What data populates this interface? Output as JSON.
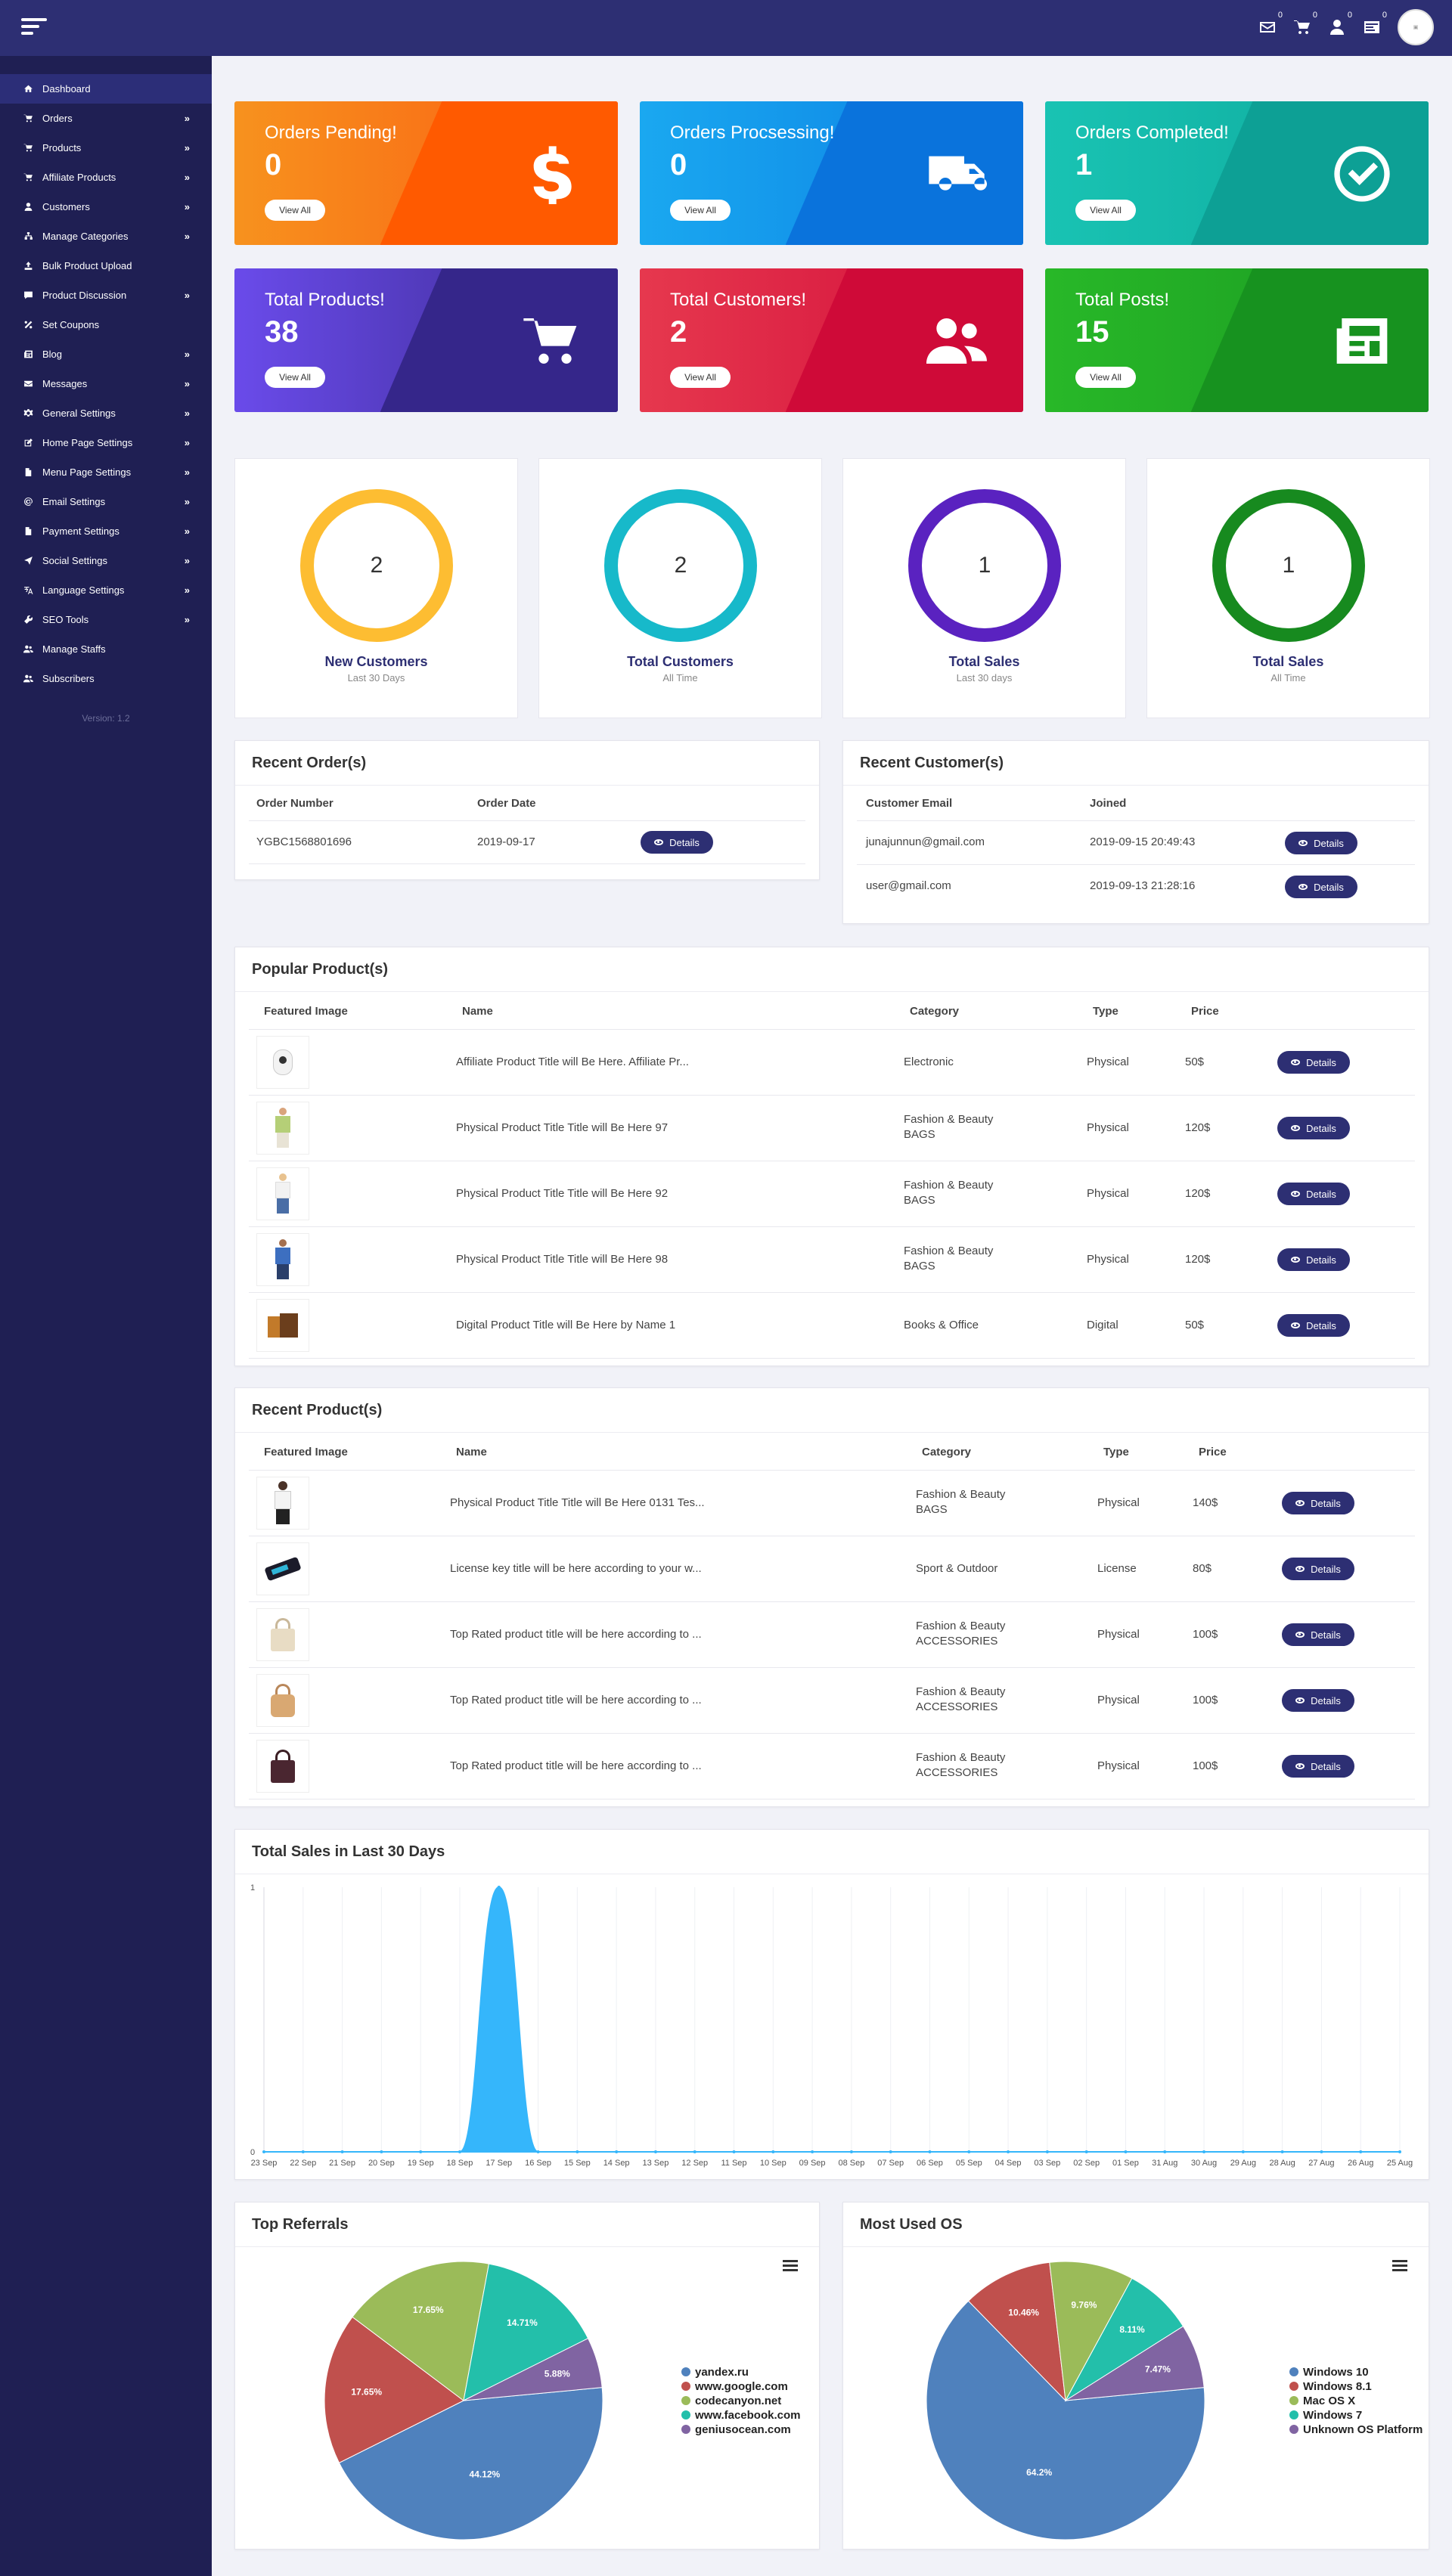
{
  "header": {
    "mail_count": "0",
    "cart_count": "0",
    "user_count": "0",
    "message_count": "0",
    "icons": [
      "mail-icon",
      "cart-icon",
      "user-icon",
      "message-icon"
    ]
  },
  "sidebar": {
    "items": [
      {
        "label": "Dashboard",
        "icon": "home-icon",
        "chevron": false,
        "active": true
      },
      {
        "label": "Orders",
        "icon": "cart-icon",
        "chevron": true
      },
      {
        "label": "Products",
        "icon": "cart-icon",
        "chevron": true
      },
      {
        "label": "Affiliate Products",
        "icon": "cart-icon",
        "chevron": true
      },
      {
        "label": "Customers",
        "icon": "user-icon",
        "chevron": true
      },
      {
        "label": "Manage Categories",
        "icon": "sitemap-icon",
        "chevron": true
      },
      {
        "label": "Bulk Product Upload",
        "icon": "upload-icon",
        "chevron": false
      },
      {
        "label": "Product Discussion",
        "icon": "comment-icon",
        "chevron": true
      },
      {
        "label": "Set Coupons",
        "icon": "percent-icon",
        "chevron": false
      },
      {
        "label": "Blog",
        "icon": "newspaper-icon",
        "chevron": true
      },
      {
        "label": "Messages",
        "icon": "envelope-icon",
        "chevron": true
      },
      {
        "label": "General Settings",
        "icon": "cogs-icon",
        "chevron": true
      },
      {
        "label": "Home Page Settings",
        "icon": "edit-icon",
        "chevron": true
      },
      {
        "label": "Menu Page Settings",
        "icon": "file-icon",
        "chevron": true
      },
      {
        "label": "Email Settings",
        "icon": "at-icon",
        "chevron": true
      },
      {
        "label": "Payment Settings",
        "icon": "file-icon",
        "chevron": true
      },
      {
        "label": "Social Settings",
        "icon": "paper-plane-icon",
        "chevron": true
      },
      {
        "label": "Language Settings",
        "icon": "language-icon",
        "chevron": true
      },
      {
        "label": "SEO Tools",
        "icon": "wrench-icon",
        "chevron": true
      },
      {
        "label": "Manage Staffs",
        "icon": "users-icon",
        "chevron": false
      },
      {
        "label": "Subscribers",
        "icon": "users-icon",
        "chevron": false
      }
    ],
    "version": "Version: 1.2"
  },
  "stats": [
    {
      "title": "Orders Pending!",
      "value": "0",
      "button": "View All",
      "icon": "dollar-icon",
      "c1": "#f7921e",
      "c2": "#fb5b12",
      "c3": "#ff5a00"
    },
    {
      "title": "Orders Procsessing!",
      "value": "0",
      "button": "View All",
      "icon": "truck-icon",
      "c1": "#1aa8f0",
      "c2": "#0b7fe3",
      "c3": "#0a73dc"
    },
    {
      "title": "Orders Completed!",
      "value": "1",
      "button": "View All",
      "icon": "check-circle-icon",
      "c1": "#19c3b3",
      "c2": "#0ea99c",
      "c3": "#0da095"
    },
    {
      "title": "Total Products!",
      "value": "38",
      "button": "View All",
      "icon": "cart-icon",
      "c1": "#6a4bea",
      "c2": "#3a2a8e",
      "c3": "#35268a"
    },
    {
      "title": "Total Customers!",
      "value": "2",
      "button": "View All",
      "icon": "users-icon",
      "c1": "#e6384e",
      "c2": "#d20c3a",
      "c3": "#cf0a38"
    },
    {
      "title": "Total Posts!",
      "value": "15",
      "button": "View All",
      "icon": "newspaper-icon",
      "c1": "#28b828",
      "c2": "#1a9a22",
      "c3": "#17921f"
    }
  ],
  "rings": [
    {
      "value": "2",
      "label": "New Customers",
      "sub": "Last 30 Days",
      "color": "#fdbd32"
    },
    {
      "value": "2",
      "label": "Total Customers",
      "sub": "All Time",
      "color": "#17b9ca"
    },
    {
      "value": "1",
      "label": "Total Sales",
      "sub": "Last 30 days",
      "color": "#5a22c0"
    },
    {
      "value": "1",
      "label": "Total Sales",
      "sub": "All Time",
      "color": "#178a1f"
    }
  ],
  "recent_orders": {
    "title": "Recent Order(s)",
    "headers": [
      "Order Number",
      "Order Date"
    ],
    "rows": [
      {
        "number": "YGBC1568801696",
        "date": "2019-09-17",
        "button": "Details"
      }
    ]
  },
  "recent_customers": {
    "title": "Recent Customer(s)",
    "headers": [
      "Customer Email",
      "Joined"
    ],
    "rows": [
      {
        "email": "junajunnun@gmail.com",
        "joined": "2019-09-15 20:49:43",
        "button": "Details"
      },
      {
        "email": "user@gmail.com",
        "joined": "2019-09-13 21:28:16",
        "button": "Details"
      }
    ]
  },
  "popular_products": {
    "title": "Popular Product(s)",
    "headers": [
      "Featured Image",
      "Name",
      "Category",
      "Type",
      "Price"
    ],
    "rows": [
      {
        "img": "camera",
        "name": "Affiliate Product Title will Be Here. Affiliate Pr...",
        "cat1": "Electronic",
        "cat2": "",
        "type": "Physical",
        "price": "50$",
        "button": "Details"
      },
      {
        "img": "man-green",
        "name": "Physical Product Title Title will Be Here 97",
        "cat1": "Fashion & Beauty",
        "cat2": "BAGS",
        "type": "Physical",
        "price": "120$",
        "button": "Details"
      },
      {
        "img": "woman-white",
        "name": "Physical Product Title Title will Be Here 92",
        "cat1": "Fashion & Beauty",
        "cat2": "BAGS",
        "type": "Physical",
        "price": "120$",
        "button": "Details"
      },
      {
        "img": "man-blue",
        "name": "Physical Product Title Title will Be Here 98",
        "cat1": "Fashion & Beauty",
        "cat2": "BAGS",
        "type": "Physical",
        "price": "120$",
        "button": "Details"
      },
      {
        "img": "books",
        "name": "Digital Product Title will Be Here by Name 1",
        "cat1": "Books & Office",
        "cat2": "",
        "type": "Digital",
        "price": "50$",
        "button": "Details"
      }
    ]
  },
  "recent_products": {
    "title": "Recent Product(s)",
    "headers": [
      "Featured Image",
      "Name",
      "Category",
      "Type",
      "Price"
    ],
    "rows": [
      {
        "img": "woman-dark",
        "name": "Physical Product Title Title will Be Here 0131 Tes...",
        "cat1": "Fashion & Beauty",
        "cat2": "BAGS",
        "type": "Physical",
        "price": "140$",
        "button": "Details"
      },
      {
        "img": "usb-key",
        "name": "License key title will be here according to your w...",
        "cat1": "Sport & Outdoor",
        "cat2": "",
        "type": "License",
        "price": "80$",
        "button": "Details"
      },
      {
        "img": "bag-beige",
        "name": "Top Rated product title will be here according to ...",
        "cat1": "Fashion & Beauty",
        "cat2": "ACCESSORIES",
        "type": "Physical",
        "price": "100$",
        "button": "Details"
      },
      {
        "img": "bag-tan",
        "name": "Top Rated product title will be here according to ...",
        "cat1": "Fashion & Beauty",
        "cat2": "ACCESSORIES",
        "type": "Physical",
        "price": "100$",
        "button": "Details"
      },
      {
        "img": "bag-dark",
        "name": "Top Rated product title will be here according to ...",
        "cat1": "Fashion & Beauty",
        "cat2": "ACCESSORIES",
        "type": "Physical",
        "price": "100$",
        "button": "Details"
      }
    ]
  },
  "sales_panel_title": "Total Sales in Last 30 Days",
  "referrals_title": "Top Referrals",
  "os_title": "Most Used OS",
  "chart_data": [
    {
      "type": "area",
      "title": "",
      "categories": [
        "23 Sep",
        "22 Sep",
        "21 Sep",
        "20 Sep",
        "19 Sep",
        "18 Sep",
        "17 Sep",
        "16 Sep",
        "15 Sep",
        "14 Sep",
        "13 Sep",
        "12 Sep",
        "11 Sep",
        "10 Sep",
        "09 Sep",
        "08 Sep",
        "07 Sep",
        "06 Sep",
        "05 Sep",
        "04 Sep",
        "03 Sep",
        "02 Sep",
        "01 Sep",
        "31 Aug",
        "30 Aug",
        "29 Aug",
        "28 Aug",
        "27 Aug",
        "26 Aug",
        "25 Aug"
      ],
      "values": [
        0,
        0,
        0,
        0,
        0,
        0,
        1,
        0,
        0,
        0,
        0,
        0,
        0,
        0,
        0,
        0,
        0,
        0,
        0,
        0,
        0,
        0,
        0,
        0,
        0,
        0,
        0,
        0,
        0,
        0
      ],
      "ylim": [
        0,
        1
      ],
      "yticks": [
        "0",
        "1"
      ],
      "color": "#35b6fb"
    },
    {
      "type": "pie",
      "labels": [
        "yandex.ru",
        "www.google.com",
        "codecanyon.net",
        "www.facebook.com",
        "geniusocean.com"
      ],
      "values": [
        44.12,
        17.65,
        17.65,
        14.71,
        5.88
      ],
      "value_labels": [
        "44.12%",
        "17.65%",
        "17.65%",
        "14.71%",
        "5.88%"
      ],
      "colors": [
        "#4f81bd",
        "#c0504d",
        "#9bbb59",
        "#23bfaa",
        "#8064a2"
      ],
      "legend": "right"
    },
    {
      "type": "pie",
      "labels": [
        "Windows 10",
        "Windows 8.1",
        "Mac OS X",
        "Windows 7",
        "Unknown OS Platform"
      ],
      "values": [
        64.2,
        10.46,
        9.76,
        8.11,
        7.47
      ],
      "value_labels": [
        "64.2%",
        "10.46%",
        "9.76%",
        "8.11%",
        "7.47%"
      ],
      "colors": [
        "#4f81bd",
        "#c0504d",
        "#9bbb59",
        "#23bfaa",
        "#8064a2"
      ],
      "legend": "right"
    }
  ]
}
